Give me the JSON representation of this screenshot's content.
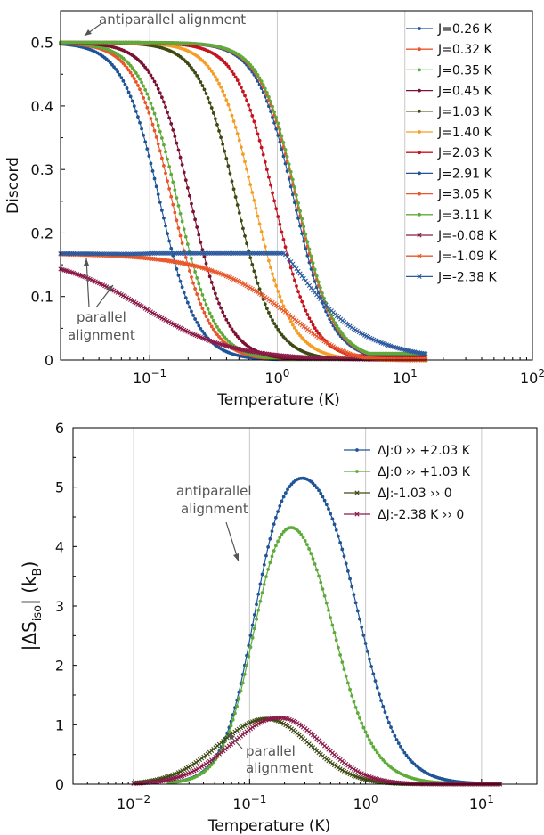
{
  "chart_data": [
    {
      "type": "line",
      "ylabel": "Discord",
      "xlabel": "Temperature (K)",
      "xscale": "log",
      "xlim": [
        0.02,
        100
      ],
      "ylim": [
        0,
        0.55
      ],
      "xticks": [
        {
          "v": 0.1,
          "base": "10",
          "exp": "−1"
        },
        {
          "v": 1,
          "base": "10",
          "exp": "0"
        },
        {
          "v": 10,
          "base": "10",
          "exp": "1"
        },
        {
          "v": 100,
          "base": "10",
          "exp": "2"
        }
      ],
      "yticks": [
        "0",
        "0.1",
        "0.2",
        "0.3",
        "0.4",
        "0.5"
      ],
      "grid": "vertical at decades",
      "legend": "right",
      "series": [
        {
          "name": "J=0.26 K",
          "color": "#1f5597",
          "marker": "dot",
          "t_half": 0.12,
          "plateau": 0.5,
          "tmax": 15
        },
        {
          "name": "J=0.32 K",
          "color": "#e8562a",
          "marker": "dot",
          "t_half": 0.15,
          "plateau": 0.5,
          "tmax": 15
        },
        {
          "name": "J=0.35 K",
          "color": "#5eab3a",
          "marker": "dot",
          "t_half": 0.165,
          "plateau": 0.5,
          "tmax": 15
        },
        {
          "name": "J=0.45 K",
          "color": "#7a1230",
          "marker": "dot",
          "t_half": 0.21,
          "plateau": 0.5,
          "tmax": 15
        },
        {
          "name": "J=1.03 K",
          "color": "#3d4a12",
          "marker": "dot",
          "t_half": 0.48,
          "plateau": 0.5,
          "tmax": 15
        },
        {
          "name": "J=1.40 K",
          "color": "#f59d24",
          "marker": "dot",
          "t_half": 0.66,
          "plateau": 0.5,
          "tmax": 15
        },
        {
          "name": "J=2.03 K",
          "color": "#c41420",
          "marker": "dot",
          "t_half": 0.95,
          "plateau": 0.5,
          "tmax": 15
        },
        {
          "name": "J=2.91 K",
          "color": "#1f5597",
          "marker": "dot",
          "t_half": 1.36,
          "plateau": 0.5,
          "tmax": 15
        },
        {
          "name": "J=3.05 K",
          "color": "#e8562a",
          "marker": "dot",
          "t_half": 1.42,
          "plateau": 0.5,
          "tmax": 15
        },
        {
          "name": "J=3.11 K",
          "color": "#5eab3a",
          "marker": "dot",
          "t_half": 1.45,
          "plateau": 0.5,
          "tmax": 15
        },
        {
          "name": "J=-0.08 K",
          "color": "#8b1a48",
          "marker": "x",
          "parallel": true,
          "j": 0.08,
          "tmax": 15
        },
        {
          "name": "J=-1.09 K",
          "color": "#e8562a",
          "marker": "x",
          "parallel": true,
          "j": 1.09,
          "tmax": 15
        },
        {
          "name": "J=-2.38 K",
          "color": "#2d5a9e",
          "marker": "x",
          "parallel": true,
          "j": 2.38,
          "tmax": 15
        }
      ],
      "annotations": [
        "antiparallel alignment",
        "parallel",
        "alignment"
      ]
    },
    {
      "type": "line",
      "ylabel_main": "|ΔS",
      "ylabel_sub": "iso",
      "ylabel_mid": "| (k",
      "ylabel_sub2": "B",
      "ylabel_end": ")",
      "xlabel": "Temperature (K)",
      "xscale": "log",
      "xlim": [
        0.003,
        30
      ],
      "ylim": [
        0,
        6
      ],
      "xticks": [
        {
          "v": 0.01,
          "base": "10",
          "exp": "−2"
        },
        {
          "v": 0.1,
          "base": "10",
          "exp": "−1"
        },
        {
          "v": 1,
          "base": "10",
          "exp": "0"
        },
        {
          "v": 10,
          "base": "10",
          "exp": "1"
        }
      ],
      "yticks": [
        "0",
        "1",
        "2",
        "3",
        "4",
        "5",
        "6"
      ],
      "grid": "vertical at decades",
      "legend": "top-right",
      "series": [
        {
          "name": "ΔJ:0 ›› +2.03 K",
          "color": "#1f5597",
          "marker": "dot",
          "peak_t": 0.3,
          "peak_v": 5.15,
          "tmin": 0.02,
          "tmax": 15
        },
        {
          "name": "ΔJ:0 ›› +1.03 K",
          "color": "#5eab3a",
          "marker": "dot",
          "peak_t": 0.18,
          "peak_v": 4.32,
          "tmin": 0.02,
          "tmax": 15
        },
        {
          "name": "ΔJ:-1.03 ›› 0",
          "color": "#3d4a12",
          "marker": "x",
          "peak_t": 0.14,
          "peak_v": 1.1,
          "tmin": 0.01,
          "tmax": 15
        },
        {
          "name": "ΔJ:-2.38 K ›› 0",
          "color": "#8b1a48",
          "marker": "x",
          "peak_t": 0.18,
          "peak_v": 1.12,
          "tmin": 0.01,
          "tmax": 15
        }
      ],
      "annotations": [
        "antiparallel",
        "alignment",
        "parallel",
        "alignment"
      ]
    }
  ]
}
